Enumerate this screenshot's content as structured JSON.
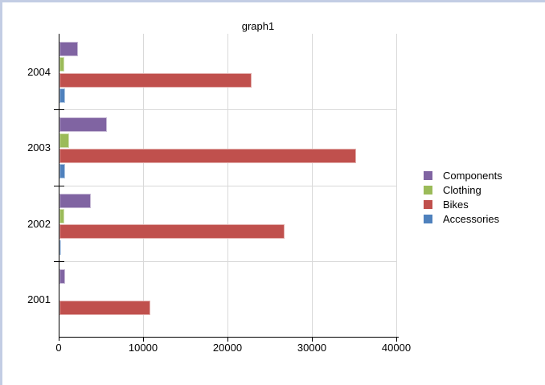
{
  "window": {
    "background": "#FFFFFF",
    "border_color": "#C3CDE4"
  },
  "chart_data": {
    "type": "bar",
    "orientation": "horizontal",
    "title": "graph1",
    "categories": [
      "2004",
      "2003",
      "2002",
      "2001"
    ],
    "series": [
      {
        "name": "Components",
        "color": "#8064A2",
        "values": [
          2200,
          5600,
          3700,
          670
        ]
      },
      {
        "name": "Clothing",
        "color": "#9BBB59",
        "values": [
          550,
          1150,
          570,
          0
        ]
      },
      {
        "name": "Bikes",
        "color": "#C0504D",
        "values": [
          22800,
          35100,
          26700,
          10800
        ]
      },
      {
        "name": "Accessories",
        "color": "#4F81BD",
        "values": [
          640,
          700,
          160,
          0
        ]
      }
    ],
    "x_axis": {
      "min": 0,
      "max": 40000,
      "ticks": [
        0,
        10000,
        20000,
        30000,
        40000
      ],
      "tick_labels": [
        "0",
        "10000",
        "20000",
        "30000",
        "40000"
      ]
    },
    "legend": {
      "position": "right",
      "items": [
        "Components",
        "Clothing",
        "Bikes",
        "Accessories"
      ]
    },
    "grid": true,
    "gridline_color": "#D9D9D9",
    "axis_color": "#000000"
  }
}
